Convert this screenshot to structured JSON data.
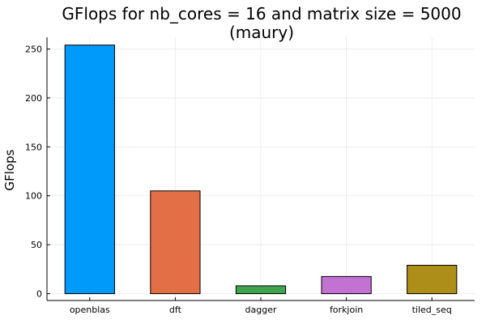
{
  "chart_data": {
    "type": "bar",
    "title_lines": [
      "GFlops for nb_cores = 16 and matrix size = 5000",
      "(maury)"
    ],
    "xlabel": "",
    "ylabel": "GFlops",
    "categories": [
      "openblas",
      "dft",
      "dagger",
      "forkjoin",
      "tiled_seq"
    ],
    "values": [
      254,
      105,
      8,
      17.5,
      29
    ],
    "colors": [
      "#009AFA",
      "#E36F47",
      "#3EA44E",
      "#C371D2",
      "#AC8E18"
    ],
    "ylim": [
      -7,
      262
    ],
    "yticks": [
      0,
      50,
      100,
      150,
      200,
      250
    ],
    "grid": true,
    "legend": "none"
  }
}
